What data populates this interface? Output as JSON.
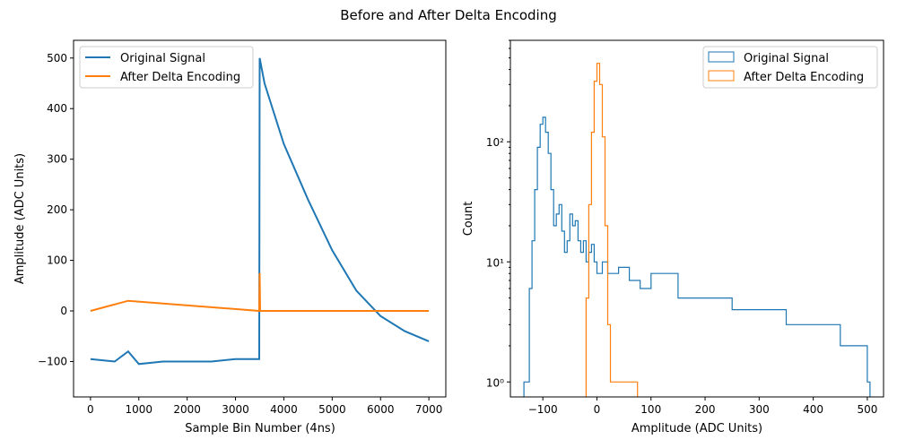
{
  "figure": {
    "title": "Before and After Delta Encoding"
  },
  "colors": {
    "original": "#1f77b4",
    "delta": "#ff7f0e"
  },
  "chart_data": [
    {
      "type": "line",
      "xlabel": "Sample Bin Number (4ns)",
      "ylabel": "Amplitude (ADC Units)",
      "xlim": [
        -350,
        7350
      ],
      "ylim": [
        -170,
        535
      ],
      "xticks": [
        0,
        1000,
        2000,
        3000,
        4000,
        5000,
        6000,
        7000
      ],
      "yticks": [
        -100,
        0,
        100,
        200,
        300,
        400,
        500
      ],
      "legend_position": "top-left",
      "grid": false,
      "series": [
        {
          "name": "Original Signal",
          "color": "#1f77b4",
          "description_points": {
            "baseline_level": -100,
            "baseline_range": [
              0,
              3500
            ],
            "noise_amplitude": 15,
            "step_at": 3500,
            "peak": 505,
            "decay_end": [
              7000,
              -60
            ],
            "disturbance_at": 780
          },
          "x": [
            0,
            500,
            780,
            1000,
            1500,
            2000,
            2500,
            3000,
            3490,
            3500,
            3600,
            4000,
            4500,
            5000,
            5500,
            6000,
            6500,
            7000
          ],
          "y": [
            -95,
            -100,
            -80,
            -105,
            -100,
            -100,
            -100,
            -95,
            -95,
            500,
            450,
            330,
            220,
            120,
            40,
            -10,
            -40,
            -60
          ]
        },
        {
          "name": "After Delta Encoding",
          "color": "#ff7f0e",
          "x": [
            0,
            780,
            3490,
            3500,
            3510,
            4500,
            7000
          ],
          "y": [
            0,
            20,
            0,
            75,
            0,
            0,
            0
          ]
        }
      ]
    },
    {
      "type": "histogram",
      "xlabel": "Amplitude (ADC Units)",
      "ylabel": "Count",
      "xlim": [
        -160,
        530
      ],
      "ylim": [
        0.75,
        700
      ],
      "yscale": "log",
      "xticks": [
        -100,
        0,
        100,
        200,
        300,
        400,
        500
      ],
      "yticks": [
        1,
        10,
        100
      ],
      "ytick_labels": [
        "10⁰",
        "10¹",
        "10²"
      ],
      "legend_position": "top-right",
      "grid": false,
      "series": [
        {
          "name": "Original Signal",
          "color": "#1f77b4",
          "style": "step",
          "x": [
            -135,
            -125,
            -120,
            -115,
            -110,
            -105,
            -100,
            -95,
            -90,
            -85,
            -80,
            -75,
            -70,
            -65,
            -60,
            -55,
            -50,
            -45,
            -40,
            -35,
            -30,
            -25,
            -20,
            -15,
            -10,
            -5,
            0,
            10,
            20,
            40,
            60,
            80,
            100,
            150,
            200,
            250,
            300,
            350,
            400,
            450,
            480,
            500
          ],
          "y": [
            1,
            6,
            15,
            40,
            90,
            140,
            160,
            120,
            80,
            40,
            20,
            25,
            30,
            18,
            12,
            15,
            25,
            20,
            22,
            15,
            12,
            15,
            10,
            12,
            14,
            10,
            8,
            10,
            8,
            9,
            7,
            6,
            8,
            5,
            5,
            4,
            4,
            3,
            3,
            2,
            2,
            1
          ]
        },
        {
          "name": "After Delta Encoding",
          "color": "#ff7f0e",
          "style": "step",
          "x": [
            -20,
            -15,
            -10,
            -5,
            0,
            5,
            10,
            15,
            20,
            25,
            30,
            40,
            60,
            70
          ],
          "y": [
            5,
            30,
            120,
            320,
            450,
            300,
            110,
            20,
            3,
            1,
            1,
            1,
            1,
            1
          ]
        }
      ]
    }
  ]
}
